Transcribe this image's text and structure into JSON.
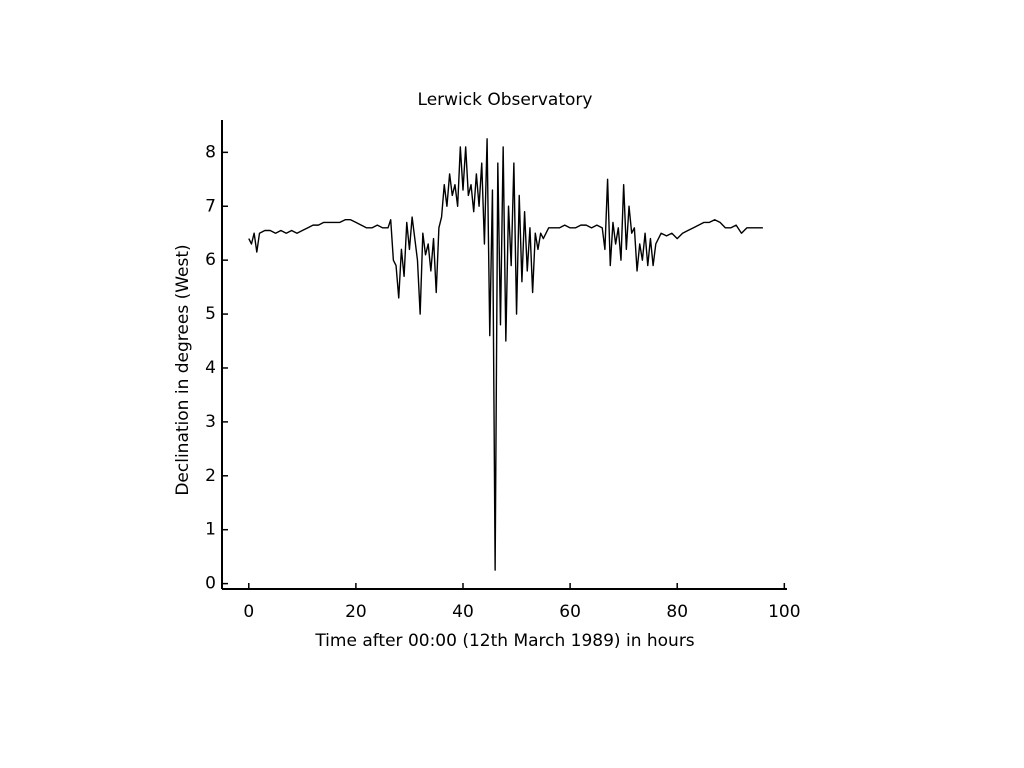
{
  "chart_data": {
    "type": "line",
    "title": "Lerwick Observatory",
    "xlabel": "Time after 00:00 (12th March 1989) in hours",
    "ylabel": "Declination in degrees (West)",
    "xlim": [
      -5,
      100.5
    ],
    "ylim": [
      -0.1,
      8.6
    ],
    "xticks": [
      0,
      20,
      40,
      60,
      80,
      100
    ],
    "yticks": [
      0,
      1,
      2,
      3,
      4,
      5,
      6,
      7,
      8
    ],
    "color": "#000000",
    "x": [
      0,
      0.5,
      1,
      1.5,
      2,
      3,
      4,
      5,
      6,
      7,
      8,
      9,
      10,
      11,
      12,
      13,
      14,
      15,
      16,
      17,
      18,
      19,
      20,
      21,
      22,
      23,
      24,
      25,
      26,
      26.5,
      27,
      27.5,
      28,
      28.5,
      29,
      29.5,
      30,
      30.5,
      31,
      31.5,
      32,
      32.5,
      33,
      33.5,
      34,
      34.5,
      35,
      35.5,
      36,
      36.5,
      37,
      37.5,
      38,
      38.5,
      39,
      39.5,
      40,
      40.5,
      41,
      41.5,
      42,
      42.5,
      43,
      43.5,
      44,
      44.5,
      45,
      45.5,
      46,
      46.5,
      47,
      47.5,
      48,
      48.5,
      49,
      49.5,
      50,
      50.5,
      51,
      51.5,
      52,
      52.5,
      53,
      53.5,
      54,
      54.5,
      55,
      56,
      57,
      58,
      59,
      60,
      61,
      62,
      63,
      64,
      65,
      66,
      66.5,
      67,
      67.5,
      68,
      68.5,
      69,
      69.5,
      70,
      70.5,
      71,
      71.5,
      72,
      72.5,
      73,
      73.5,
      74,
      74.5,
      75,
      75.5,
      76,
      77,
      78,
      79,
      80,
      81,
      82,
      83,
      84,
      85,
      86,
      87,
      88,
      89,
      90,
      91,
      92,
      93,
      94,
      95,
      96
    ],
    "values": [
      6.4,
      6.3,
      6.5,
      6.15,
      6.5,
      6.55,
      6.55,
      6.5,
      6.55,
      6.5,
      6.55,
      6.5,
      6.55,
      6.6,
      6.65,
      6.65,
      6.7,
      6.7,
      6.7,
      6.7,
      6.75,
      6.75,
      6.7,
      6.65,
      6.6,
      6.6,
      6.65,
      6.6,
      6.6,
      6.75,
      6.0,
      5.9,
      5.3,
      6.2,
      5.7,
      6.7,
      6.2,
      6.8,
      6.4,
      6.0,
      5.0,
      6.5,
      6.1,
      6.3,
      5.8,
      6.4,
      5.4,
      6.6,
      6.8,
      7.4,
      7.0,
      7.6,
      7.2,
      7.4,
      7.0,
      8.1,
      7.3,
      8.1,
      7.2,
      7.4,
      6.9,
      7.6,
      7.0,
      7.8,
      6.3,
      8.25,
      4.6,
      7.3,
      0.25,
      7.8,
      4.8,
      8.1,
      4.5,
      7.0,
      5.9,
      7.8,
      5.0,
      7.2,
      5.6,
      6.9,
      5.8,
      6.6,
      5.4,
      6.5,
      6.2,
      6.5,
      6.4,
      6.6,
      6.6,
      6.6,
      6.65,
      6.6,
      6.6,
      6.65,
      6.65,
      6.6,
      6.65,
      6.6,
      6.2,
      7.5,
      5.9,
      6.7,
      6.3,
      6.6,
      6.0,
      7.4,
      6.2,
      7.0,
      6.5,
      6.6,
      5.8,
      6.3,
      6.0,
      6.5,
      5.9,
      6.4,
      5.9,
      6.3,
      6.5,
      6.45,
      6.5,
      6.4,
      6.5,
      6.55,
      6.6,
      6.65,
      6.7,
      6.7,
      6.75,
      6.7,
      6.6,
      6.6,
      6.65,
      6.5,
      6.6,
      6.6,
      6.6,
      6.6
    ]
  }
}
